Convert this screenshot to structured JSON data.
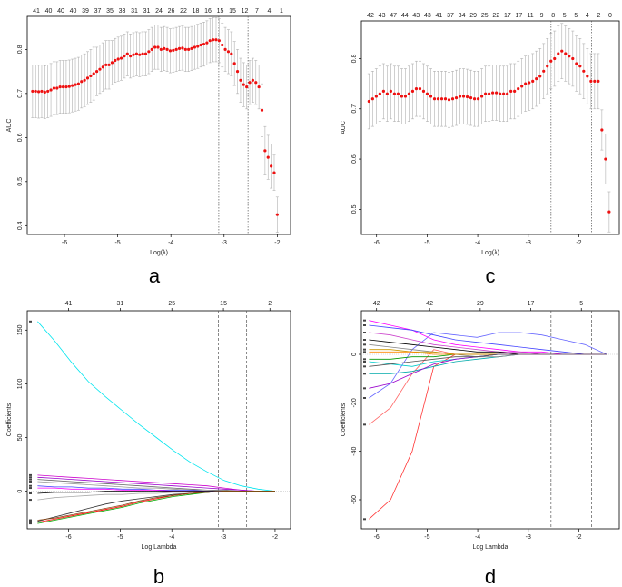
{
  "chart_data": [
    {
      "id": "a",
      "type": "scatter",
      "panel_label": "a",
      "xlabel": "Log(λ)",
      "ylabel": "AUC",
      "xlim": [
        -6.7,
        -1.75
      ],
      "ylim": [
        0.38,
        0.875
      ],
      "xticks": [
        "-6",
        "-5",
        "-4",
        "-3",
        "-2"
      ],
      "yticks": [
        "0.4",
        "0.5",
        "0.6",
        "0.7",
        "0.8"
      ],
      "top_ticks": [
        "41",
        "40",
        "40",
        "40",
        "39",
        "37",
        "35",
        "33",
        "31",
        "31",
        "24",
        "26",
        "22",
        "18",
        "16",
        "15",
        "15",
        "12",
        "7",
        "4",
        "1"
      ],
      "vlines": [
        -3.1,
        -2.55
      ],
      "x_start": -6.6,
      "x_end": -2.0,
      "auc": [
        0.705,
        0.705,
        0.704,
        0.705,
        0.703,
        0.705,
        0.708,
        0.712,
        0.712,
        0.715,
        0.715,
        0.715,
        0.716,
        0.718,
        0.72,
        0.722,
        0.727,
        0.73,
        0.735,
        0.74,
        0.745,
        0.75,
        0.755,
        0.76,
        0.765,
        0.765,
        0.77,
        0.775,
        0.778,
        0.78,
        0.785,
        0.79,
        0.785,
        0.788,
        0.79,
        0.788,
        0.79,
        0.79,
        0.795,
        0.8,
        0.805,
        0.805,
        0.8,
        0.802,
        0.8,
        0.797,
        0.798,
        0.8,
        0.802,
        0.803,
        0.8,
        0.8,
        0.802,
        0.805,
        0.807,
        0.81,
        0.812,
        0.815,
        0.82,
        0.822,
        0.822,
        0.82,
        0.81,
        0.8,
        0.795,
        0.79,
        0.768,
        0.75,
        0.73,
        0.72,
        0.715,
        0.725,
        0.73,
        0.725,
        0.715,
        0.662,
        0.57,
        0.555,
        0.535,
        0.52,
        0.425
      ],
      "err": [
        0.06,
        0.06,
        0.06,
        0.06,
        0.06,
        0.06,
        0.06,
        0.06,
        0.06,
        0.06,
        0.06,
        0.06,
        0.06,
        0.06,
        0.06,
        0.06,
        0.06,
        0.06,
        0.06,
        0.06,
        0.06,
        0.055,
        0.055,
        0.055,
        0.055,
        0.055,
        0.05,
        0.05,
        0.05,
        0.05,
        0.05,
        0.05,
        0.05,
        0.05,
        0.05,
        0.05,
        0.05,
        0.05,
        0.05,
        0.05,
        0.05,
        0.05,
        0.05,
        0.05,
        0.05,
        0.05,
        0.05,
        0.05,
        0.05,
        0.05,
        0.05,
        0.05,
        0.05,
        0.05,
        0.05,
        0.05,
        0.05,
        0.05,
        0.05,
        0.05,
        0.05,
        0.05,
        0.05,
        0.05,
        0.05,
        0.05,
        0.05,
        0.05,
        0.05,
        0.05,
        0.05,
        0.05,
        0.05,
        0.05,
        0.05,
        0.06,
        0.055,
        0.05,
        0.05,
        0.04,
        0.04
      ]
    },
    {
      "id": "b",
      "type": "line",
      "panel_label": "b",
      "xlabel": "Log Lambda",
      "ylabel": "Coefficients",
      "xlim": [
        -6.8,
        -1.7
      ],
      "ylim": [
        -35,
        168
      ],
      "xticks": [
        "-6",
        "-5",
        "-4",
        "-3",
        "-2"
      ],
      "yticks": [
        "0",
        "50",
        "100",
        "150"
      ],
      "top_axis": {
        "values": [
          -6.0,
          -5.0,
          -4.0,
          -3.0,
          -2.1
        ],
        "labels": [
          "41",
          "31",
          "25",
          "15",
          "2"
        ]
      },
      "vlines": [
        -3.1,
        -2.55
      ],
      "x_start": -6.6,
      "x_end": -2.0,
      "series": [
        {
          "name": "s1",
          "color": "#00e5ee",
          "values": [
            158,
            140,
            120,
            102,
            88,
            75,
            62,
            50,
            38,
            27,
            18,
            10,
            5,
            2,
            0
          ]
        },
        {
          "name": "s2",
          "color": "#cc00cc",
          "values": [
            15,
            14,
            13,
            12,
            11,
            10,
            9,
            8,
            7,
            6,
            5,
            3,
            1,
            0,
            0
          ]
        },
        {
          "name": "s3",
          "color": "#9900cc",
          "values": [
            13,
            12,
            11,
            10,
            9,
            8,
            7,
            6,
            5,
            4,
            3,
            2,
            1,
            0,
            0
          ]
        },
        {
          "name": "s4",
          "color": "#666666",
          "values": [
            11,
            10,
            9,
            8,
            7,
            6,
            5,
            4,
            3,
            2,
            1,
            1,
            0,
            0,
            0
          ]
        },
        {
          "name": "s5",
          "color": "#999999",
          "values": [
            9,
            8,
            7,
            6,
            5,
            4,
            3,
            3,
            2,
            1,
            1,
            0,
            0,
            0,
            0
          ]
        },
        {
          "name": "s6",
          "color": "#4444ff",
          "values": [
            5,
            4,
            4,
            3,
            3,
            2,
            2,
            1,
            1,
            1,
            0,
            0,
            0,
            0,
            0
          ]
        },
        {
          "name": "s7",
          "color": "#ff00ff",
          "values": [
            3,
            3,
            2,
            2,
            2,
            1,
            1,
            1,
            0,
            0,
            0,
            0,
            0,
            0,
            0
          ]
        },
        {
          "name": "s8",
          "color": "#aaaaaa",
          "values": [
            -8,
            -6,
            -5,
            -4,
            -3,
            -3,
            -2,
            -2,
            -1,
            -1,
            0,
            0,
            0,
            0,
            0
          ]
        },
        {
          "name": "s9",
          "color": "#000000",
          "values": [
            -2,
            -1,
            -1,
            -1,
            0,
            0,
            0,
            0,
            0,
            0,
            0,
            0,
            0,
            0,
            0
          ]
        },
        {
          "name": "s10",
          "color": "#333333",
          "values": [
            -28,
            -24,
            -20,
            -16,
            -12,
            -9,
            -7,
            -5,
            -3,
            -2,
            -1,
            0,
            0,
            0,
            0
          ]
        },
        {
          "name": "s11",
          "color": "#ff0000",
          "values": [
            -29,
            -26,
            -23,
            -20,
            -17,
            -14,
            -10,
            -7,
            -4,
            -2,
            -1,
            0,
            0,
            0,
            0
          ]
        },
        {
          "name": "s12",
          "color": "#00aa00",
          "values": [
            -30,
            -27,
            -24,
            -21,
            -18,
            -15,
            -11,
            -8,
            -5,
            -3,
            -1,
            0,
            0,
            0,
            0
          ]
        },
        {
          "name": "s13",
          "color": "#8b4513",
          "values": [
            -27,
            -25,
            -22,
            -19,
            -16,
            -13,
            -9,
            -6,
            -4,
            -2,
            -1,
            0,
            0,
            0,
            0
          ]
        }
      ]
    },
    {
      "id": "c",
      "type": "scatter",
      "panel_label": "c",
      "xlabel": "Log(λ)",
      "ylabel": "AUC",
      "xlim": [
        -6.3,
        -1.2
      ],
      "ylim": [
        0.45,
        0.875
      ],
      "xticks": [
        "-6",
        "-5",
        "-4",
        "-3",
        "-2"
      ],
      "yticks": [
        "0.5",
        "0.6",
        "0.7",
        "0.8"
      ],
      "top_ticks": [
        "42",
        "43",
        "47",
        "44",
        "43",
        "43",
        "41",
        "37",
        "34",
        "29",
        "25",
        "22",
        "17",
        "17",
        "11",
        "9",
        "8",
        "5",
        "5",
        "4",
        "2",
        "0"
      ],
      "vlines": [
        -2.55,
        -1.75
      ],
      "x_start": -6.15,
      "x_end": -1.4,
      "auc": [
        0.715,
        0.72,
        0.725,
        0.73,
        0.735,
        0.73,
        0.735,
        0.73,
        0.73,
        0.725,
        0.725,
        0.73,
        0.735,
        0.74,
        0.74,
        0.735,
        0.73,
        0.725,
        0.72,
        0.72,
        0.72,
        0.72,
        0.718,
        0.72,
        0.722,
        0.725,
        0.725,
        0.724,
        0.722,
        0.72,
        0.72,
        0.725,
        0.73,
        0.73,
        0.732,
        0.732,
        0.73,
        0.73,
        0.73,
        0.735,
        0.735,
        0.74,
        0.745,
        0.75,
        0.752,
        0.755,
        0.76,
        0.765,
        0.775,
        0.785,
        0.795,
        0.8,
        0.81,
        0.815,
        0.81,
        0.805,
        0.8,
        0.79,
        0.785,
        0.775,
        0.765,
        0.755,
        0.755,
        0.755,
        0.658,
        0.6,
        0.495
      ],
      "err": [
        0.055,
        0.055,
        0.055,
        0.055,
        0.055,
        0.055,
        0.055,
        0.055,
        0.055,
        0.055,
        0.055,
        0.055,
        0.055,
        0.055,
        0.055,
        0.055,
        0.055,
        0.055,
        0.055,
        0.055,
        0.055,
        0.055,
        0.055,
        0.055,
        0.055,
        0.055,
        0.055,
        0.055,
        0.055,
        0.055,
        0.055,
        0.055,
        0.055,
        0.055,
        0.055,
        0.055,
        0.055,
        0.055,
        0.055,
        0.055,
        0.055,
        0.055,
        0.055,
        0.055,
        0.055,
        0.055,
        0.055,
        0.055,
        0.055,
        0.055,
        0.055,
        0.055,
        0.055,
        0.055,
        0.055,
        0.055,
        0.055,
        0.055,
        0.055,
        0.055,
        0.055,
        0.055,
        0.055,
        0.055,
        0.04,
        0.05,
        0.04
      ]
    },
    {
      "id": "d",
      "type": "line",
      "panel_label": "d",
      "xlabel": "Log Lambda",
      "ylabel": "Coefficients",
      "xlim": [
        -6.3,
        -1.2
      ],
      "ylim": [
        -72,
        18
      ],
      "xticks": [
        "-6",
        "-5",
        "-4",
        "-3",
        "-2"
      ],
      "yticks": [
        "-60",
        "-40",
        "-20",
        "0"
      ],
      "top_axis": {
        "values": [
          -6.0,
          -4.95,
          -3.95,
          -2.95,
          -1.95
        ],
        "labels": [
          "42",
          "42",
          "29",
          "17",
          "5"
        ]
      },
      "vlines": [
        -2.55,
        -1.75
      ],
      "x_start": -6.15,
      "x_end": -1.45,
      "series": [
        {
          "name": "t1",
          "color": "#ff3333",
          "values": [
            -68,
            -60,
            -40,
            -5,
            0,
            0,
            0,
            0,
            0,
            0,
            0,
            0
          ]
        },
        {
          "name": "t2",
          "color": "#ff6666",
          "values": [
            -29,
            -22,
            -8,
            2,
            0,
            0,
            0,
            0,
            0,
            0,
            0,
            0
          ]
        },
        {
          "name": "t3",
          "color": "#6666ff",
          "values": [
            -18,
            -12,
            2,
            9,
            8,
            7,
            9,
            9,
            8,
            6,
            4,
            0
          ]
        },
        {
          "name": "t4",
          "color": "#ff00ff",
          "values": [
            14,
            12,
            10,
            6,
            4,
            3,
            2,
            1,
            1,
            0,
            0,
            0
          ]
        },
        {
          "name": "t5",
          "color": "#cc44cc",
          "values": [
            9,
            8,
            6,
            4,
            3,
            2,
            1,
            1,
            0,
            0,
            0,
            0
          ]
        },
        {
          "name": "t6",
          "color": "#4444ff",
          "values": [
            12,
            11,
            10,
            8,
            6,
            5,
            4,
            3,
            2,
            1,
            0,
            0
          ]
        },
        {
          "name": "t7",
          "color": "#000000",
          "values": [
            6,
            5,
            4,
            3,
            2,
            1,
            1,
            0,
            0,
            0,
            0,
            0
          ]
        },
        {
          "name": "t8",
          "color": "#00cccc",
          "values": [
            -3,
            -4,
            -5,
            -3,
            -2,
            -1,
            0,
            0,
            0,
            0,
            0,
            0
          ]
        },
        {
          "name": "t9",
          "color": "#00aaaa",
          "values": [
            -8,
            -8,
            -7,
            -5,
            -3,
            -2,
            -1,
            0,
            0,
            0,
            0,
            0
          ]
        },
        {
          "name": "t10",
          "color": "#888888",
          "values": [
            4,
            3,
            2,
            1,
            0,
            -1,
            -1,
            0,
            0,
            0,
            0,
            0
          ]
        },
        {
          "name": "t11",
          "color": "#cc9900",
          "values": [
            2,
            2,
            1,
            1,
            0,
            0,
            0,
            0,
            0,
            0,
            0,
            0
          ]
        },
        {
          "name": "t12",
          "color": "#009900",
          "values": [
            -2,
            -2,
            -1,
            -1,
            0,
            0,
            0,
            0,
            0,
            0,
            0,
            0
          ]
        },
        {
          "name": "t13",
          "color": "#ff8800",
          "values": [
            1,
            1,
            1,
            0,
            0,
            0,
            0,
            0,
            0,
            0,
            0,
            0
          ]
        },
        {
          "name": "t14",
          "color": "#9900cc",
          "values": [
            -14,
            -12,
            -8,
            -4,
            -2,
            -1,
            0,
            0,
            0,
            0,
            0,
            0
          ]
        },
        {
          "name": "t15",
          "color": "#555555",
          "values": [
            -5,
            -4,
            -3,
            -2,
            -1,
            -1,
            0,
            0,
            0,
            0,
            0,
            0
          ]
        }
      ]
    }
  ]
}
